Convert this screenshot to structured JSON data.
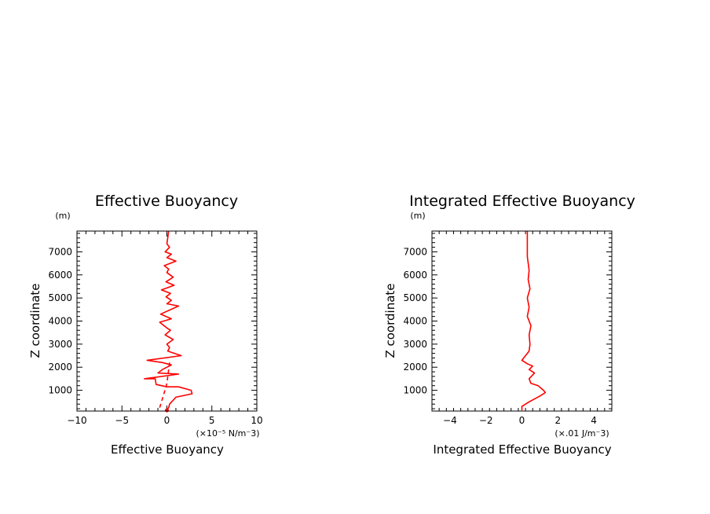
{
  "chart_data": [
    {
      "type": "line",
      "title": "Effective Buoyancy",
      "xlabel": "Effective Buoyancy",
      "ylabel": "Z coordinate",
      "y_unit": "(m)",
      "x_unit": "(×10⁻⁵ N/m⁻3)",
      "xlim": [
        -10,
        10
      ],
      "ylim": [
        100,
        7900
      ],
      "x_ticks": [
        "−10",
        "−5",
        "0",
        "5",
        "10"
      ],
      "y_ticks": [
        "1000",
        "2000",
        "3000",
        "4000",
        "5000",
        "6000",
        "7000"
      ],
      "grid": false,
      "color": "#ff0000",
      "series": [
        {
          "style": "solid",
          "x": [
            0.0,
            0.2,
            0.3,
            1.0,
            2.8,
            2.7,
            1.3,
            0.0,
            -1.2,
            -1.3,
            -2.5,
            1.3,
            -1.0,
            -0.5,
            0.5,
            -0.5,
            -2.2,
            1.6,
            0.1,
            0.3,
            0.0,
            0.7,
            -0.2,
            0.4,
            0.0,
            -0.8,
            0.5,
            -0.7,
            1.3,
            0.0,
            0.5,
            -0.1,
            0.4,
            -0.6,
            0.8,
            -0.1,
            0.7,
            0.0,
            0.2,
            -0.3,
            1.0,
            0.0,
            0.5,
            -0.2,
            0.3,
            0.0,
            0.2
          ],
          "y": [
            130,
            250,
            400,
            700,
            850,
            1000,
            1150,
            1150,
            1250,
            1500,
            1500,
            1700,
            1750,
            1900,
            2100,
            2200,
            2300,
            2500,
            2700,
            2850,
            3000,
            3200,
            3400,
            3600,
            3700,
            3950,
            4100,
            4300,
            4650,
            4750,
            4900,
            5050,
            5200,
            5350,
            5550,
            5700,
            5900,
            6100,
            6250,
            6400,
            6600,
            6750,
            6900,
            7000,
            7200,
            7350,
            7900
          ]
        },
        {
          "style": "dashed",
          "x": [
            -0.8,
            -0.4,
            0.0,
            0.3
          ],
          "y": [
            250,
            750,
            1300,
            2200
          ]
        }
      ]
    },
    {
      "type": "line",
      "title": "Integrated Effective Buoyancy",
      "xlabel": "Integrated Effective Buoyancy",
      "ylabel": "Z coordinate",
      "y_unit": "(m)",
      "x_unit": "(×.01 J/m⁻3)",
      "xlim": [
        -5,
        5
      ],
      "ylim": [
        100,
        7900
      ],
      "x_ticks": [
        "−4",
        "−2",
        "0",
        "2",
        "4"
      ],
      "y_ticks": [
        "1000",
        "2000",
        "3000",
        "4000",
        "5000",
        "6000",
        "7000"
      ],
      "grid": false,
      "color": "#ff0000",
      "series": [
        {
          "style": "solid",
          "x": [
            0.0,
            0.0,
            0.4,
            1.0,
            1.3,
            1.2,
            0.9,
            0.5,
            0.4,
            0.7,
            0.4,
            0.6,
            0.3,
            0.0,
            0.2,
            0.4,
            0.45,
            0.4,
            0.5,
            0.3,
            0.4,
            0.3,
            0.45,
            0.35,
            0.4,
            0.3,
            0.3
          ],
          "y": [
            130,
            300,
            500,
            750,
            900,
            1000,
            1200,
            1300,
            1500,
            1750,
            1900,
            2050,
            2150,
            2300,
            2500,
            2700,
            3000,
            3400,
            3800,
            4200,
            4600,
            5000,
            5400,
            5800,
            6200,
            6800,
            7900
          ]
        }
      ]
    }
  ]
}
